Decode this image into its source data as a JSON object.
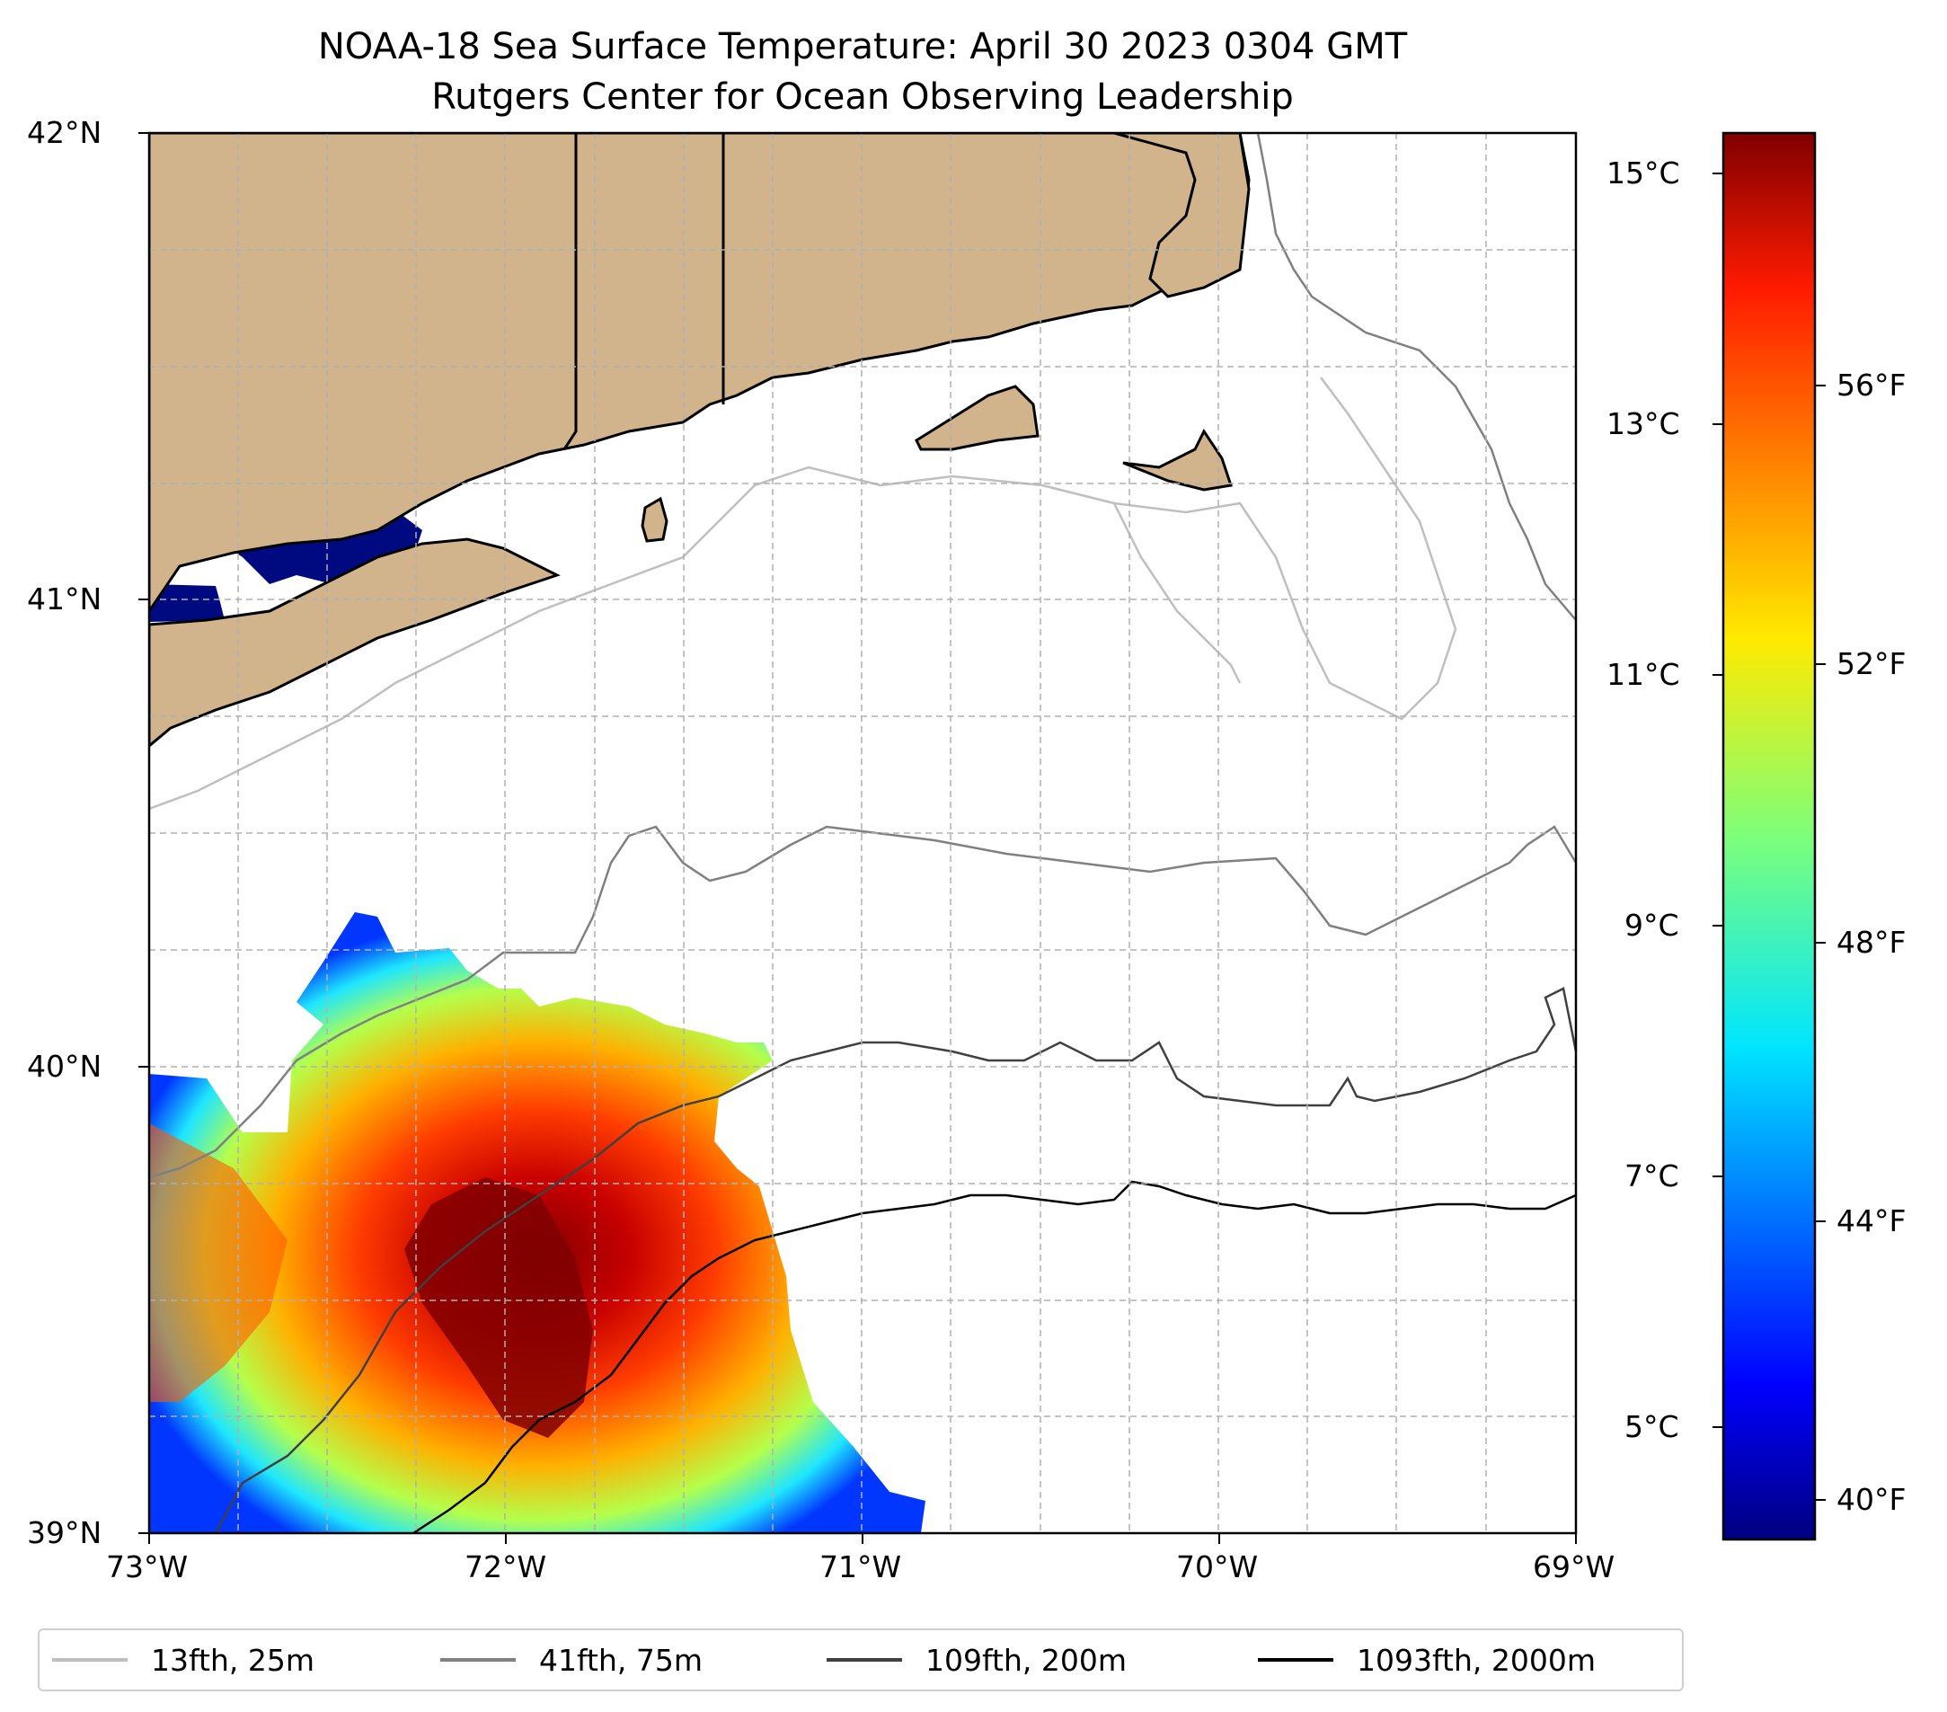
{
  "title": {
    "line1": "NOAA-18 Sea Surface Temperature: April 30 2023 0304 GMT",
    "line2": "Rutgers Center for Ocean Observing Leadership"
  },
  "map": {
    "lon_range": [
      -73,
      -69
    ],
    "lat_range": [
      39,
      42
    ],
    "x_ticks": [
      "73°W",
      "72°W",
      "71°W",
      "70°W",
      "69°W"
    ],
    "y_ticks": [
      "42°N",
      "41°N",
      "40°N",
      "39°N"
    ],
    "land_color": "#d2b48c",
    "ocean_color": "#ffffff",
    "grid": "dashed"
  },
  "colorbar": {
    "colormap": "jet",
    "celsius_range": [
      4.3,
      15.3
    ],
    "celsius_labels": [
      "15°C",
      "13°C",
      "11°C",
      "9°C",
      "7°C",
      "5°C"
    ],
    "fahrenheit_labels": [
      "56°F",
      "52°F",
      "48°F",
      "44°F",
      "40°F"
    ]
  },
  "legend": {
    "items": [
      {
        "label": "13fth, 25m",
        "color": "#bfbfbf"
      },
      {
        "label": "41fth, 75m",
        "color": "#808080"
      },
      {
        "label": "109fth, 200m",
        "color": "#404040"
      },
      {
        "label": "1093fth, 2000m",
        "color": "#000000"
      }
    ]
  }
}
